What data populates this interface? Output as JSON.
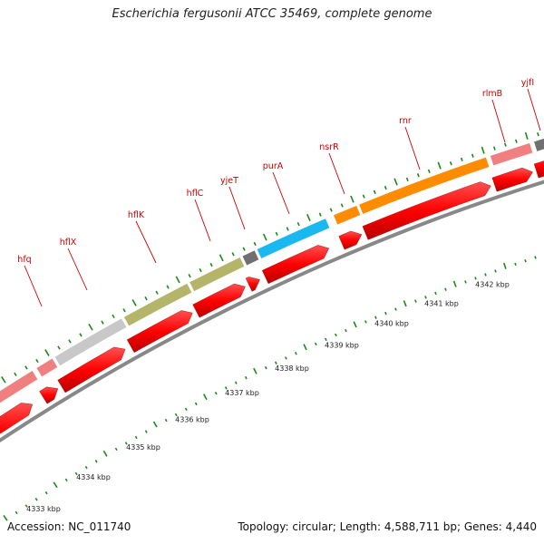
{
  "title": "Escherichia fergusonii ATCC 35469, complete genome",
  "footer": {
    "accession": "Accession: NC_011740",
    "summary": "Topology: circular; Length: 4,588,711 bp; Genes: 4,440"
  },
  "scale_labels": [
    "4333 kbp",
    "4334 kbp",
    "4335 kbp",
    "4336 kbp",
    "4337 kbp",
    "4338 kbp",
    "4339 kbp",
    "4340 kbp",
    "4341 kbp",
    "4342 kbp"
  ],
  "genes": [
    {
      "name": "hfq",
      "color": "#f08080"
    },
    {
      "name": "hflX",
      "color": "#c8c8c8"
    },
    {
      "name": "hflK",
      "color": "#b5b56a"
    },
    {
      "name": "hflC",
      "color": "#b5b56a"
    },
    {
      "name": "yjeT",
      "color": "#707070"
    },
    {
      "name": "purA",
      "color": "#1ab8f0"
    },
    {
      "name": "nsrR",
      "color": "#ff8c00"
    },
    {
      "name": "rnr",
      "color": "#ff8c00"
    },
    {
      "name": "rlmB",
      "color": "#f08080"
    },
    {
      "name": "yjfI",
      "color": "#707070"
    }
  ],
  "colors": {
    "cds": "#ff0000",
    "label": "#cc0000",
    "tick": "#1a8a1a",
    "backbone": "#888888"
  }
}
